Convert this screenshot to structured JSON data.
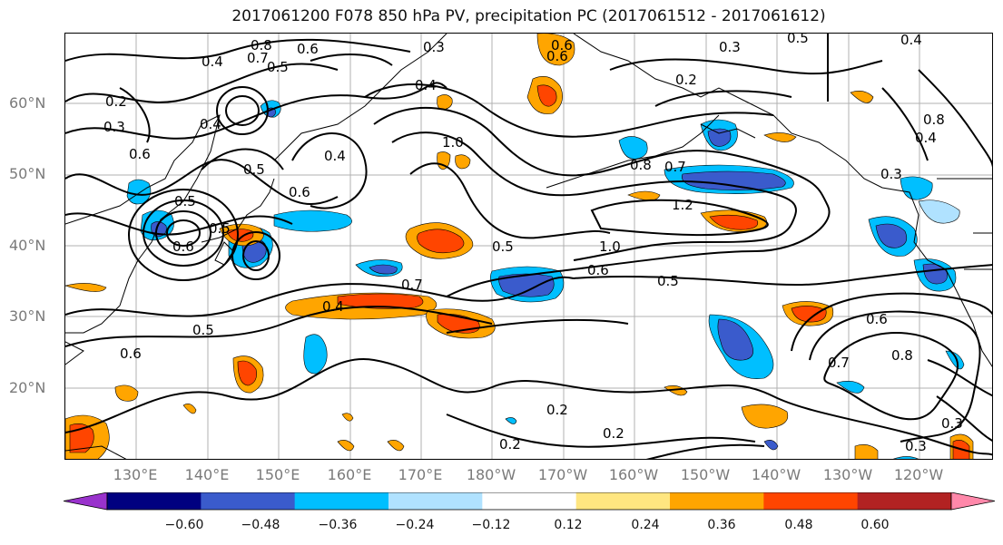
{
  "title": "2017061200 F078 850 hPa PV, precipitation PC (2017061512 - 2017061612)",
  "lat_labels": [
    "60°N",
    "50°N",
    "40°N",
    "30°N",
    "20°N"
  ],
  "lon_labels": [
    "130°E",
    "140°E",
    "150°E",
    "160°E",
    "170°E",
    "180°W",
    "170°W",
    "160°W",
    "150°W",
    "140°W",
    "130°W",
    "120°W"
  ],
  "colorbar": {
    "ticks": [
      "−0.60",
      "−0.48",
      "−0.36",
      "−0.24",
      "−0.12",
      "0.12",
      "0.24",
      "0.36",
      "0.48",
      "0.60"
    ],
    "colors": [
      "#9932cc",
      "#000080",
      "#3a5bcc",
      "#00bfff",
      "#b0e2ff",
      "#ffffff",
      "#ffe680",
      "#ffa500",
      "#ff4500",
      "#b22222",
      "#ff88aa"
    ]
  },
  "contour_labels": [
    "0.8",
    "0.6",
    "0.5",
    "0.3",
    "0.6",
    "0.6",
    "0.4",
    "0.2",
    "0.3",
    "0.4",
    "0.5",
    "0.6",
    "0.4",
    "0.2",
    "1.0",
    "0.5",
    "0.4",
    "0.7",
    "0.8",
    "0.6",
    "1.2",
    "0.7",
    "1.0",
    "0.5",
    "0.6",
    "0.5",
    "0.4",
    "0.7",
    "0.4",
    "0.5",
    "0.6",
    "0.3",
    "0.5",
    "0.4",
    "0.3",
    "0.8",
    "0.7",
    "0.6",
    "0.8",
    "0.2",
    "0.2",
    "0.2",
    "0.3",
    "0.3",
    "0.6",
    "0.5"
  ]
}
